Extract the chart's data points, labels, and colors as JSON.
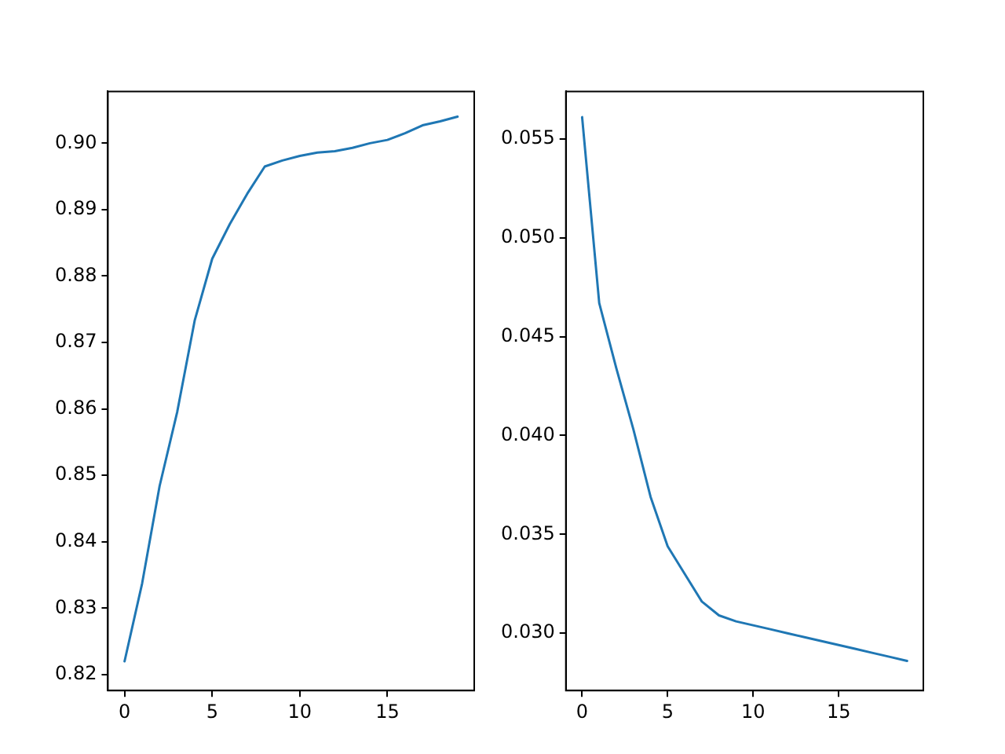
{
  "chart_data": [
    {
      "type": "line",
      "x": [
        0,
        1,
        2,
        3,
        4,
        5,
        6,
        7,
        8,
        9,
        10,
        11,
        12,
        13,
        14,
        15,
        16,
        17,
        18,
        19
      ],
      "series": [
        {
          "color": "#1f77b4",
          "values": [
            0.822,
            0.8337,
            0.8484,
            0.8595,
            0.8733,
            0.8826,
            0.8878,
            0.8924,
            0.8965,
            0.8974,
            0.8981,
            0.8986,
            0.8988,
            0.8993,
            0.9,
            0.9005,
            0.9015,
            0.9027,
            0.9033,
            0.904
          ]
        }
      ],
      "xlim": [
        -0.95,
        19.95
      ],
      "xticks": [
        0,
        5,
        10,
        15
      ],
      "ylim": [
        0.8176,
        0.9078
      ],
      "yticks": [
        {
          "value": 0.82,
          "label": "0.82"
        },
        {
          "value": 0.83,
          "label": "0.83"
        },
        {
          "value": 0.84,
          "label": "0.84"
        },
        {
          "value": 0.85,
          "label": "0.85"
        },
        {
          "value": 0.86,
          "label": "0.86"
        },
        {
          "value": 0.87,
          "label": "0.87"
        },
        {
          "value": 0.88,
          "label": "0.88"
        },
        {
          "value": 0.89,
          "label": "0.89"
        },
        {
          "value": 0.9,
          "label": "0.90"
        }
      ],
      "grid": false,
      "legend": false,
      "marker": "none",
      "line_style": "solid"
    },
    {
      "type": "line",
      "x": [
        0,
        1,
        2,
        3,
        4,
        5,
        6,
        7,
        8,
        9,
        10,
        11,
        12,
        13,
        14,
        15,
        16,
        17,
        18,
        19
      ],
      "series": [
        {
          "color": "#1f77b4",
          "values": [
            0.0561,
            0.0467,
            0.0434,
            0.0403,
            0.0369,
            0.0344,
            0.033,
            0.0316,
            0.0309,
            0.0306,
            0.0304,
            0.0302,
            0.03,
            0.0298,
            0.0296,
            0.0294,
            0.0292,
            0.029,
            0.0288,
            0.0286
          ]
        }
      ],
      "xlim": [
        -0.95,
        19.95
      ],
      "xticks": [
        0,
        5,
        10,
        15
      ],
      "ylim": [
        0.0271,
        0.0574
      ],
      "yticks": [
        {
          "value": 0.03,
          "label": "0.030"
        },
        {
          "value": 0.035,
          "label": "0.035"
        },
        {
          "value": 0.04,
          "label": "0.040"
        },
        {
          "value": 0.045,
          "label": "0.045"
        },
        {
          "value": 0.05,
          "label": "0.050"
        },
        {
          "value": 0.055,
          "label": "0.055"
        }
      ],
      "grid": false,
      "legend": false,
      "marker": "none",
      "line_style": "solid"
    }
  ]
}
